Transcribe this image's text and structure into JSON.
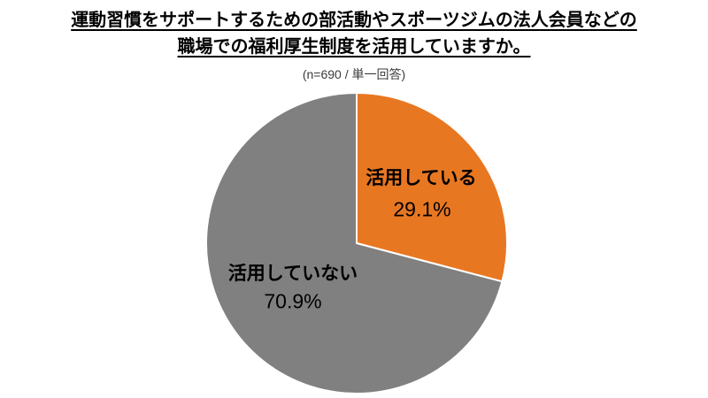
{
  "header": {
    "title_line1": "運動習慣をサポートするための部活動やスポーツジムの法人会員などの",
    "title_line2": "職場での福利厚生制度を活用していますか。",
    "subtitle": "(n=690 / 単一回答)"
  },
  "chart_data": {
    "type": "pie",
    "title": "運動習慣をサポートするための部活動やスポーツジムの法人会員などの職場での福利厚生制度を活用していますか。",
    "subtitle": "(n=690 / 単一回答)",
    "sample_size": 690,
    "answer_type": "単一回答",
    "start_angle_deg": 0,
    "direction": "clockwise",
    "slice_border_color": "#FFFFFF",
    "legend": "none",
    "slices": [
      {
        "label": "活用している",
        "value": 29.1,
        "pct_label": "29.1%",
        "color": "#E87722"
      },
      {
        "label": "活用していない",
        "value": 70.9,
        "pct_label": "70.9%",
        "color": "#808080"
      }
    ]
  }
}
